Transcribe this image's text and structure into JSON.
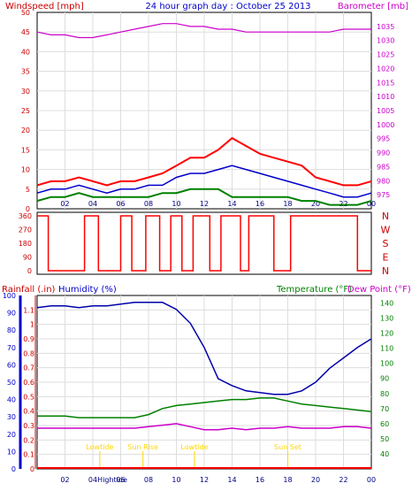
{
  "header": {
    "left": "Windspeed [mph]",
    "center": "24 hour graph day : October 25 2013",
    "right": "Barometer [mb]"
  },
  "labels": {
    "rain": "Rainfall (.in)",
    "humidity": "Humidity (%)",
    "temperature": "Temperature (°F)",
    "dewpoint": "Dew Point (°F)",
    "high_tide": "Hightide",
    "low_tide_1": "Lowtide",
    "low_tide_2": "Lowtide",
    "sun_rise": "Sun Rise",
    "sun_set": "Sun Set"
  },
  "colors": {
    "wind_gust": "#ff0000",
    "wind_avg": "#0000cc",
    "wind_low": "#008000",
    "barometer": "#cc00cc",
    "direction": "#ff0000",
    "rain": "#ff0000",
    "humidity": "#0000aa",
    "temperature": "#008000",
    "dewpoint": "#cc00cc",
    "events": "#ffd700",
    "axis_left": "#cc0000",
    "axis_humidity": "#0000cc",
    "axis_temp": "#008000",
    "grid": "#dddddd"
  },
  "chart_data": [
    {
      "type": "line",
      "name": "wind_barometer",
      "x_ticks": [
        "02",
        "04",
        "06",
        "08",
        "10",
        "12",
        "14",
        "16",
        "18",
        "20",
        "22",
        "00"
      ],
      "ylim_left": [
        0,
        50
      ],
      "y_ticks_left": [
        0,
        5,
        10,
        15,
        20,
        25,
        30,
        35,
        40,
        45,
        50
      ],
      "ylim_right": [
        970,
        1040
      ],
      "y_ticks_right": [
        975,
        980,
        985,
        990,
        995,
        1000,
        1005,
        1010,
        1015,
        1020,
        1025,
        1030,
        1035
      ],
      "grid": true,
      "x": [
        0,
        1,
        2,
        3,
        4,
        5,
        6,
        7,
        8,
        9,
        10,
        11,
        12,
        13,
        14,
        15,
        16,
        17,
        18,
        19,
        20,
        21,
        22,
        23,
        24
      ],
      "gust": [
        6,
        7,
        7,
        8,
        7,
        6,
        7,
        7,
        8,
        9,
        11,
        13,
        13,
        15,
        18,
        16,
        14,
        13,
        12,
        11,
        8,
        7,
        6,
        6,
        7
      ],
      "average": [
        4,
        5,
        5,
        6,
        5,
        4,
        5,
        5,
        6,
        6,
        8,
        9,
        9,
        10,
        11,
        10,
        9,
        8,
        7,
        6,
        5,
        4,
        3,
        3,
        4
      ],
      "low": [
        2,
        3,
        3,
        4,
        3,
        3,
        3,
        3,
        3,
        4,
        4,
        5,
        5,
        5,
        3,
        3,
        3,
        3,
        3,
        2,
        2,
        1,
        1,
        1,
        2
      ],
      "barometer": [
        1033,
        1032,
        1032,
        1031,
        1031,
        1032,
        1033,
        1034,
        1035,
        1036,
        1036,
        1035,
        1035,
        1034,
        1034,
        1033,
        1033,
        1033,
        1033,
        1033,
        1033,
        1033,
        1034,
        1034,
        1034
      ]
    },
    {
      "type": "line",
      "name": "wind_direction",
      "ylim": [
        0,
        360
      ],
      "y_ticks": [
        0,
        90,
        180,
        270,
        360
      ],
      "cardinal": [
        "N",
        "W",
        "S",
        "E",
        "N"
      ],
      "segments": [
        [
          0.0,
          0.8,
          360
        ],
        [
          0.8,
          3.4,
          0
        ],
        [
          3.4,
          4.4,
          360
        ],
        [
          4.4,
          6.0,
          0
        ],
        [
          6.0,
          6.8,
          360
        ],
        [
          6.8,
          7.8,
          0
        ],
        [
          7.8,
          8.8,
          360
        ],
        [
          8.8,
          9.6,
          0
        ],
        [
          9.6,
          10.4,
          360
        ],
        [
          10.4,
          11.2,
          0
        ],
        [
          11.2,
          12.4,
          360
        ],
        [
          12.4,
          13.2,
          0
        ],
        [
          13.2,
          14.6,
          360
        ],
        [
          14.6,
          15.2,
          0
        ],
        [
          15.2,
          17.0,
          360
        ],
        [
          17.0,
          18.2,
          0
        ],
        [
          18.2,
          22.0,
          360
        ],
        [
          22.0,
          23.0,
          360
        ],
        [
          23.0,
          24.0,
          0
        ]
      ]
    },
    {
      "type": "line",
      "name": "rain_humidity_temperature",
      "ylim_rain": [
        0,
        1.2
      ],
      "y_ticks_rain": [
        0,
        0.1,
        0.2,
        0.3,
        0.4,
        0.5,
        0.6,
        0.7,
        0.8,
        0.9,
        1,
        1.1
      ],
      "ylim_humidity": [
        0,
        100
      ],
      "y_ticks_humidity": [
        0,
        10,
        20,
        30,
        40,
        50,
        60,
        70,
        80,
        90,
        100
      ],
      "ylim_temp": [
        30,
        145
      ],
      "y_ticks_temp": [
        40,
        50,
        60,
        70,
        80,
        90,
        100,
        110,
        120,
        130,
        140
      ],
      "x": [
        0,
        1,
        2,
        3,
        4,
        5,
        6,
        7,
        8,
        9,
        10,
        11,
        12,
        13,
        14,
        15,
        16,
        17,
        18,
        19,
        20,
        21,
        22,
        23,
        24
      ],
      "humidity": [
        93,
        94,
        94,
        93,
        94,
        94,
        95,
        96,
        96,
        96,
        92,
        84,
        70,
        52,
        48,
        45,
        44,
        43,
        43,
        45,
        50,
        58,
        64,
        70,
        75
      ],
      "temperature": [
        65,
        65,
        65,
        64,
        64,
        64,
        64,
        64,
        66,
        70,
        72,
        73,
        74,
        75,
        76,
        76,
        77,
        77,
        75,
        73,
        72,
        71,
        70,
        69,
        68
      ],
      "dewpoint": [
        57,
        57,
        57,
        57,
        57,
        57,
        57,
        57,
        58,
        59,
        60,
        58,
        56,
        56,
        57,
        56,
        57,
        57,
        58,
        57,
        57,
        57,
        58,
        58,
        57
      ],
      "rain": [
        0,
        0,
        0,
        0,
        0,
        0,
        0,
        0,
        0,
        0,
        0,
        0,
        0,
        0,
        0,
        0,
        0,
        0,
        0,
        0,
        0,
        0,
        0,
        0,
        0
      ],
      "events": [
        {
          "key": "low_tide_1",
          "x": 4.5
        },
        {
          "key": "sun_rise",
          "x": 7.6
        },
        {
          "key": "low_tide_2",
          "x": 11.3
        },
        {
          "key": "sun_set",
          "x": 18.0
        }
      ],
      "bottom_event": {
        "key": "high_tide",
        "x": 5.4
      }
    }
  ]
}
